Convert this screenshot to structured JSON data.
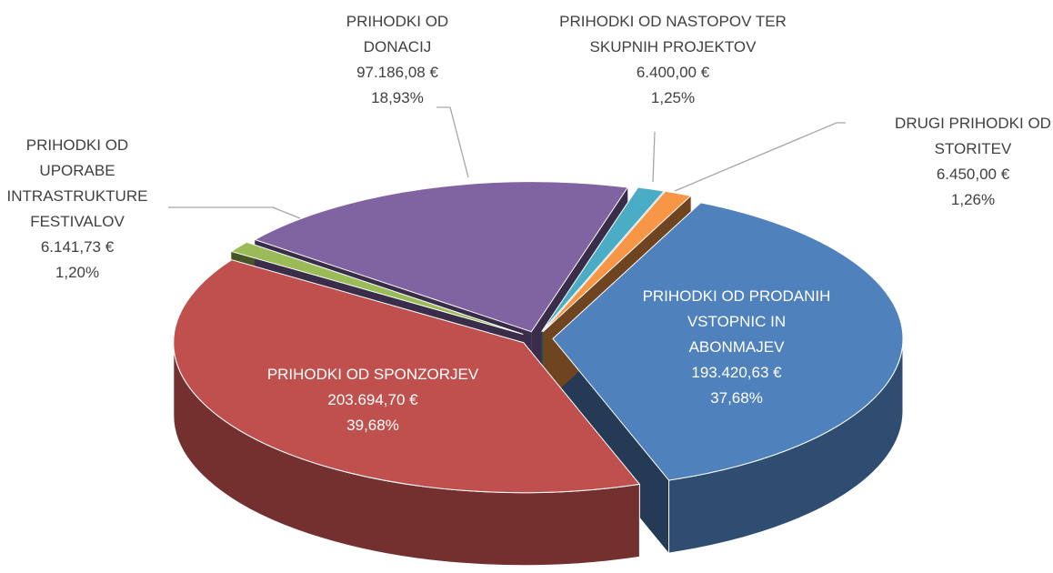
{
  "chart_data": {
    "type": "pie",
    "categories": [
      "PRIHODKI OD PRODANIH VSTOPNIC IN ABONMAJEV",
      "PRIHODKI OD SPONZORJEV",
      "PRIHODKI OD UPORABE INTRASTRUKTURE FESTIVALOV",
      "PRIHODKI OD DONACIJ",
      "PRIHODKI OD NASTOPOV TER SKUPNIH PROJEKTOV",
      "DRUGI PRIHODKI OD STORITEV"
    ],
    "values": [
      193420.63,
      203694.7,
      6141.73,
      97186.08,
      6400.0,
      6450.0
    ],
    "value_labels": [
      "193.420,63 €",
      "203.694,70 €",
      "6.141,73 €",
      "97.186,08 €",
      "6.400,00 €",
      "6.450,00 €"
    ],
    "percents": [
      37.68,
      39.68,
      1.2,
      18.93,
      1.25,
      1.26
    ],
    "percent_labels": [
      "37,68%",
      "39,68%",
      "1,20%",
      "18,93%",
      "1,25%",
      "1,26%"
    ],
    "colors": [
      "#4f81bd",
      "#c0504d",
      "#9bbb59",
      "#8064a2",
      "#4bacc6",
      "#f79646"
    ]
  }
}
